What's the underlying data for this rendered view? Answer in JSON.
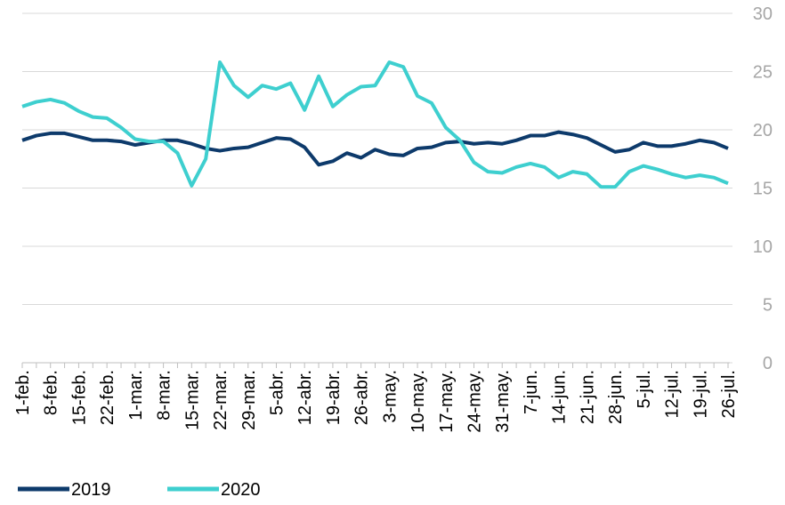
{
  "chart_data": {
    "type": "line",
    "categories": [
      "1-feb.",
      null,
      "8-feb.",
      null,
      "15-feb.",
      null,
      "22-feb.",
      null,
      "1-mar.",
      null,
      "8-mar.",
      null,
      "15-mar.",
      null,
      "22-mar.",
      null,
      "29-mar.",
      null,
      "5-abr.",
      null,
      "12-abr.",
      null,
      "19-abr.",
      null,
      "26-abr.",
      null,
      "3-may.",
      null,
      "10-may.",
      null,
      "17-may.",
      null,
      "24-may.",
      null,
      "31-may.",
      null,
      "7-jun.",
      null,
      "14-jun.",
      null,
      "21-jun.",
      null,
      "28-jun.",
      null,
      "5-jul.",
      null,
      "12-jul.",
      null,
      "19-jul.",
      null,
      "26-jul."
    ],
    "series": [
      {
        "name": "2019",
        "color": "#0d3a6b",
        "values": [
          19.1,
          19.5,
          19.7,
          19.7,
          19.4,
          19.1,
          19.1,
          19.0,
          18.7,
          18.9,
          19.1,
          19.1,
          18.8,
          18.4,
          18.2,
          18.4,
          18.5,
          18.9,
          19.3,
          19.2,
          18.5,
          17.0,
          17.3,
          18.0,
          17.6,
          18.3,
          17.9,
          17.8,
          18.4,
          18.5,
          18.9,
          19.0,
          18.8,
          18.9,
          18.8,
          19.1,
          19.5,
          19.5,
          19.8,
          19.6,
          19.3,
          18.7,
          18.1,
          18.3,
          18.9,
          18.6,
          18.6,
          18.8,
          19.1,
          18.9,
          18.4
        ]
      },
      {
        "name": "2020",
        "color": "#3ecfcf",
        "values": [
          22.0,
          22.4,
          22.6,
          22.3,
          21.6,
          21.1,
          21.0,
          20.2,
          19.2,
          19.0,
          19.0,
          18.0,
          15.2,
          17.5,
          25.8,
          23.8,
          22.8,
          23.8,
          23.5,
          24.0,
          21.7,
          24.6,
          22.0,
          23.0,
          23.7,
          23.8,
          25.8,
          25.4,
          22.9,
          22.3,
          20.2,
          19.1,
          17.2,
          16.4,
          16.3,
          16.8,
          17.1,
          16.8,
          15.9,
          16.4,
          16.2,
          15.1,
          15.1,
          16.4,
          16.9,
          16.6,
          16.2,
          15.9,
          16.1,
          15.9,
          15.4
        ]
      }
    ],
    "ylim": [
      0,
      30
    ],
    "yticks": [
      0,
      5,
      10,
      15,
      20,
      25,
      30
    ],
    "grid": true
  }
}
